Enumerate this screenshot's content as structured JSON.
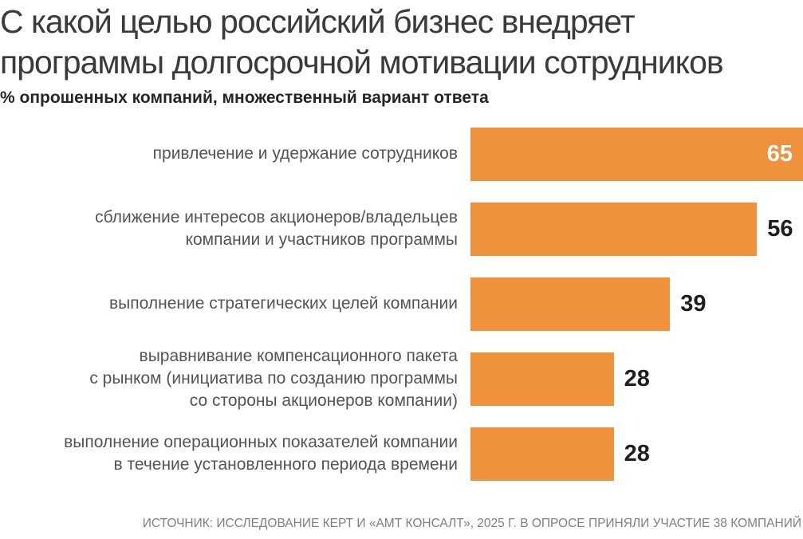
{
  "header": {
    "title": "С какой целью российский бизнес внедряет\nпрограммы долгосрочной мотивации сотрудников",
    "subtitle": "% опрошенных компаний, множественный вариант ответа"
  },
  "footer": {
    "source": "ИСТОЧНИК: ИССЛЕДОВАНИЕ КЕРТ И «АМТ КОНСАЛТ», 2025 Г. В ОПРОСЕ ПРИНЯЛИ УЧАСТИЕ 38 КОМПАНИЙ"
  },
  "colors": {
    "bar": "#F0913B",
    "value_inside": "#FFFFFF",
    "value_outside": "#1F1F1F",
    "label": "#545454",
    "title": "#3A3A3A",
    "source": "#7F7F7F"
  },
  "chart_data": {
    "type": "bar",
    "orientation": "horizontal",
    "title": "С какой целью российский бизнес внедряет программы долгосрочной мотивации сотрудников",
    "subtitle": "% опрошенных компаний, множественный вариант ответа",
    "source": "ИСТОЧНИК: ИССЛЕДОВАНИЕ КЕРТ И «АМТ КОНСАЛТ», 2025 Г. В ОПРОСЕ ПРИНЯЛИ УЧАСТИЕ 38 КОМПАНИЙ",
    "unit": "% опрошенных компаний",
    "xlim": [
      0,
      65
    ],
    "grid": false,
    "legend": false,
    "categories": [
      "привлечение и удержание сотрудников",
      "сближение интересов акционеров/владельцев компании и участников программы",
      "выполнение стратегических целей компании",
      "выравнивание компенсационного пакета с рынком (инициатива по созданию программы со стороны акционеров компании)",
      "выполнение операционных показателей компании в течение установленного периода времени"
    ],
    "values": [
      65,
      56,
      39,
      28,
      28
    ],
    "bars": [
      {
        "label": "привлечение и удержание сотрудников",
        "value": 65,
        "value_inside": true
      },
      {
        "label": "сближение интересов акционеров/владельцев\nкомпании и участников программы",
        "value": 56,
        "value_inside": false
      },
      {
        "label": "выполнение стратегических целей компании",
        "value": 39,
        "value_inside": false
      },
      {
        "label": "выравнивание компенсационного пакета\nс рынком (инициатива по созданию программы\nсо стороны акционеров компании)",
        "value": 28,
        "value_inside": false
      },
      {
        "label": "выполнение операционных показателей компании\nв течение установленного периода времени",
        "value": 28,
        "value_inside": false
      }
    ]
  }
}
